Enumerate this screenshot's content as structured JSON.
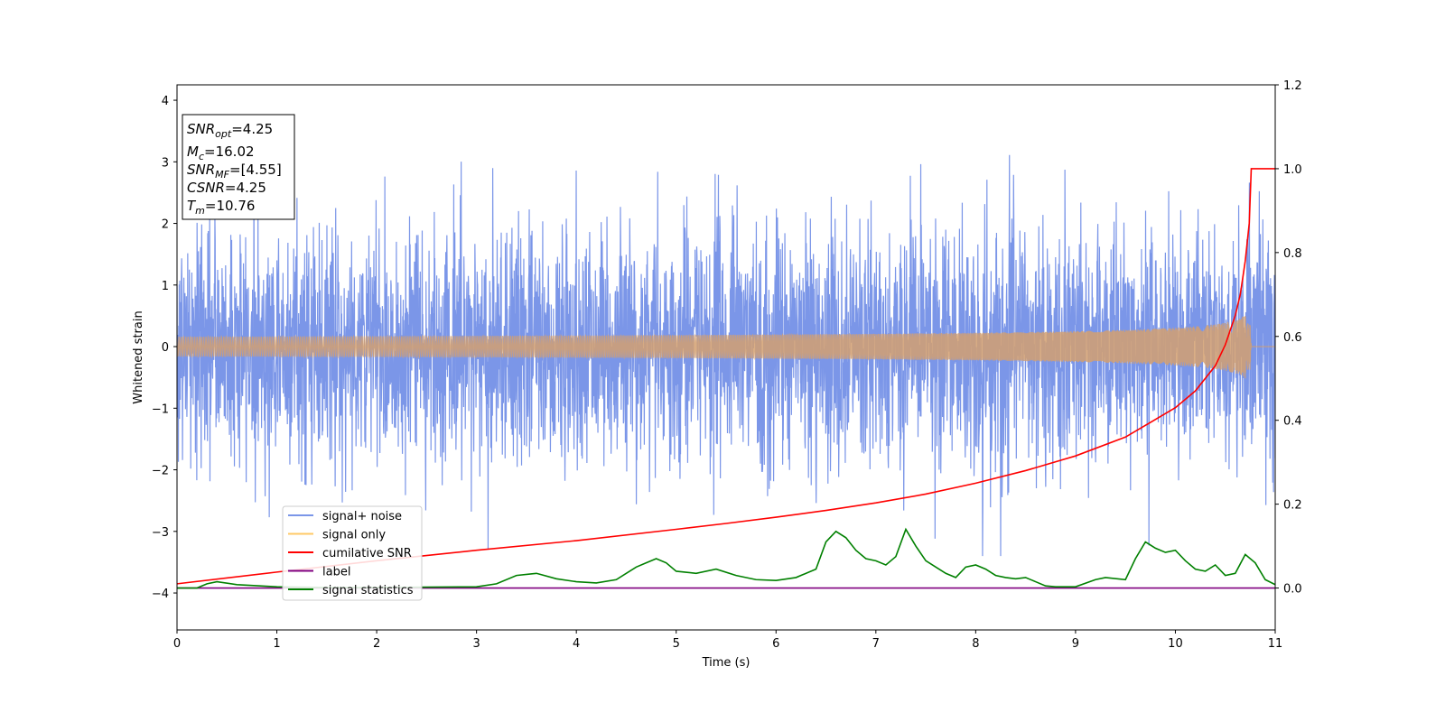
{
  "chart_data": {
    "type": "line",
    "xlabel": "Time (s)",
    "ylabel": "Whitened strain",
    "xlim": [
      0,
      11
    ],
    "ylim": [
      -4.6,
      4.25
    ],
    "y2lim": [
      -0.1,
      1.2
    ],
    "xticks": [
      "0",
      "1",
      "2",
      "3",
      "4",
      "5",
      "6",
      "7",
      "8",
      "9",
      "10",
      "11"
    ],
    "yticks": [
      "4",
      "3",
      "2",
      "1",
      "0",
      "−1",
      "−2",
      "−3",
      "−4"
    ],
    "y2ticks": [
      "1.2",
      "1.0",
      "0.8",
      "0.6",
      "0.4",
      "0.2",
      "0.0"
    ],
    "info_box": {
      "snr_opt": {
        "base": "SNR",
        "sub": "opt",
        "value": "=4.25"
      },
      "mc": {
        "base": "M",
        "sub": "c",
        "value": "=16.02"
      },
      "snr_mf": {
        "base": "SNR",
        "sub": "MF",
        "value": "=[4.55]"
      },
      "csnr": {
        "base": "CSNR",
        "value": "=4.25"
      },
      "tm": {
        "base": "T",
        "sub": "m",
        "value": "=10.76"
      }
    },
    "legend": {
      "placement": "lower-left",
      "entries": [
        {
          "label": "signal+ noise",
          "color": "#7b96e8"
        },
        {
          "label": "signal only",
          "color": "#ffc966"
        },
        {
          "label": "cumilative SNR",
          "color": "#ff0000"
        },
        {
          "label": "label",
          "color": "#800080"
        },
        {
          "label": "signal statistics",
          "color": "#008000"
        }
      ]
    },
    "series": [
      {
        "name": "signal+ noise",
        "axis": "left",
        "description_values": "whitened strain, roughly zero-mean noise, amplitude std ~0.95, peaks to ~3.8 / -3.3"
      },
      {
        "name": "signal only",
        "axis": "left",
        "chirp_end_time": 10.76,
        "peak_amplitude": 0.65
      },
      {
        "name": "cumilative SNR",
        "axis": "right",
        "x": [
          0,
          1,
          2,
          3,
          4,
          5,
          5.5,
          6,
          6.5,
          7,
          7.5,
          8,
          8.5,
          9,
          9.5,
          10,
          10.2,
          10.4,
          10.5,
          10.6,
          10.65,
          10.7,
          10.74,
          10.76,
          11
        ],
        "y": [
          0.01,
          0.038,
          0.065,
          0.09,
          0.113,
          0.14,
          0.154,
          0.169,
          0.185,
          0.203,
          0.224,
          0.25,
          0.28,
          0.315,
          0.36,
          0.43,
          0.47,
          0.53,
          0.58,
          0.65,
          0.7,
          0.78,
          0.87,
          1.0,
          1.0
        ]
      },
      {
        "name": "label",
        "axis": "right",
        "x": [
          0,
          11
        ],
        "y": [
          0,
          0
        ]
      },
      {
        "name": "signal statistics",
        "axis": "right",
        "x": [
          0,
          0.2,
          0.3,
          0.4,
          0.6,
          1.0,
          1.5,
          2.0,
          2.5,
          3.0,
          3.2,
          3.4,
          3.6,
          3.8,
          4.0,
          4.2,
          4.4,
          4.6,
          4.7,
          4.8,
          4.9,
          5.0,
          5.2,
          5.4,
          5.6,
          5.8,
          6.0,
          6.2,
          6.4,
          6.5,
          6.6,
          6.7,
          6.8,
          6.9,
          7.0,
          7.1,
          7.2,
          7.3,
          7.4,
          7.5,
          7.6,
          7.7,
          7.8,
          7.9,
          8.0,
          8.1,
          8.2,
          8.3,
          8.4,
          8.5,
          8.6,
          8.7,
          8.8,
          9.0,
          9.2,
          9.3,
          9.5,
          9.6,
          9.7,
          9.8,
          9.9,
          10.0,
          10.1,
          10.2,
          10.3,
          10.4,
          10.5,
          10.6,
          10.7,
          10.8,
          10.9,
          11.0
        ],
        "y": [
          0.0,
          0.0,
          0.01,
          0.015,
          0.008,
          0.003,
          0.001,
          0.001,
          0.002,
          0.003,
          0.01,
          0.03,
          0.035,
          0.022,
          0.015,
          0.012,
          0.02,
          0.05,
          0.06,
          0.07,
          0.06,
          0.04,
          0.035,
          0.045,
          0.03,
          0.02,
          0.018,
          0.025,
          0.045,
          0.11,
          0.135,
          0.12,
          0.09,
          0.07,
          0.065,
          0.055,
          0.075,
          0.14,
          0.1,
          0.065,
          0.05,
          0.035,
          0.025,
          0.05,
          0.055,
          0.045,
          0.03,
          0.025,
          0.022,
          0.025,
          0.015,
          0.005,
          0.003,
          0.003,
          0.02,
          0.025,
          0.02,
          0.07,
          0.11,
          0.095,
          0.085,
          0.09,
          0.065,
          0.045,
          0.04,
          0.055,
          0.03,
          0.035,
          0.08,
          0.06,
          0.02,
          0.008
        ]
      }
    ]
  }
}
